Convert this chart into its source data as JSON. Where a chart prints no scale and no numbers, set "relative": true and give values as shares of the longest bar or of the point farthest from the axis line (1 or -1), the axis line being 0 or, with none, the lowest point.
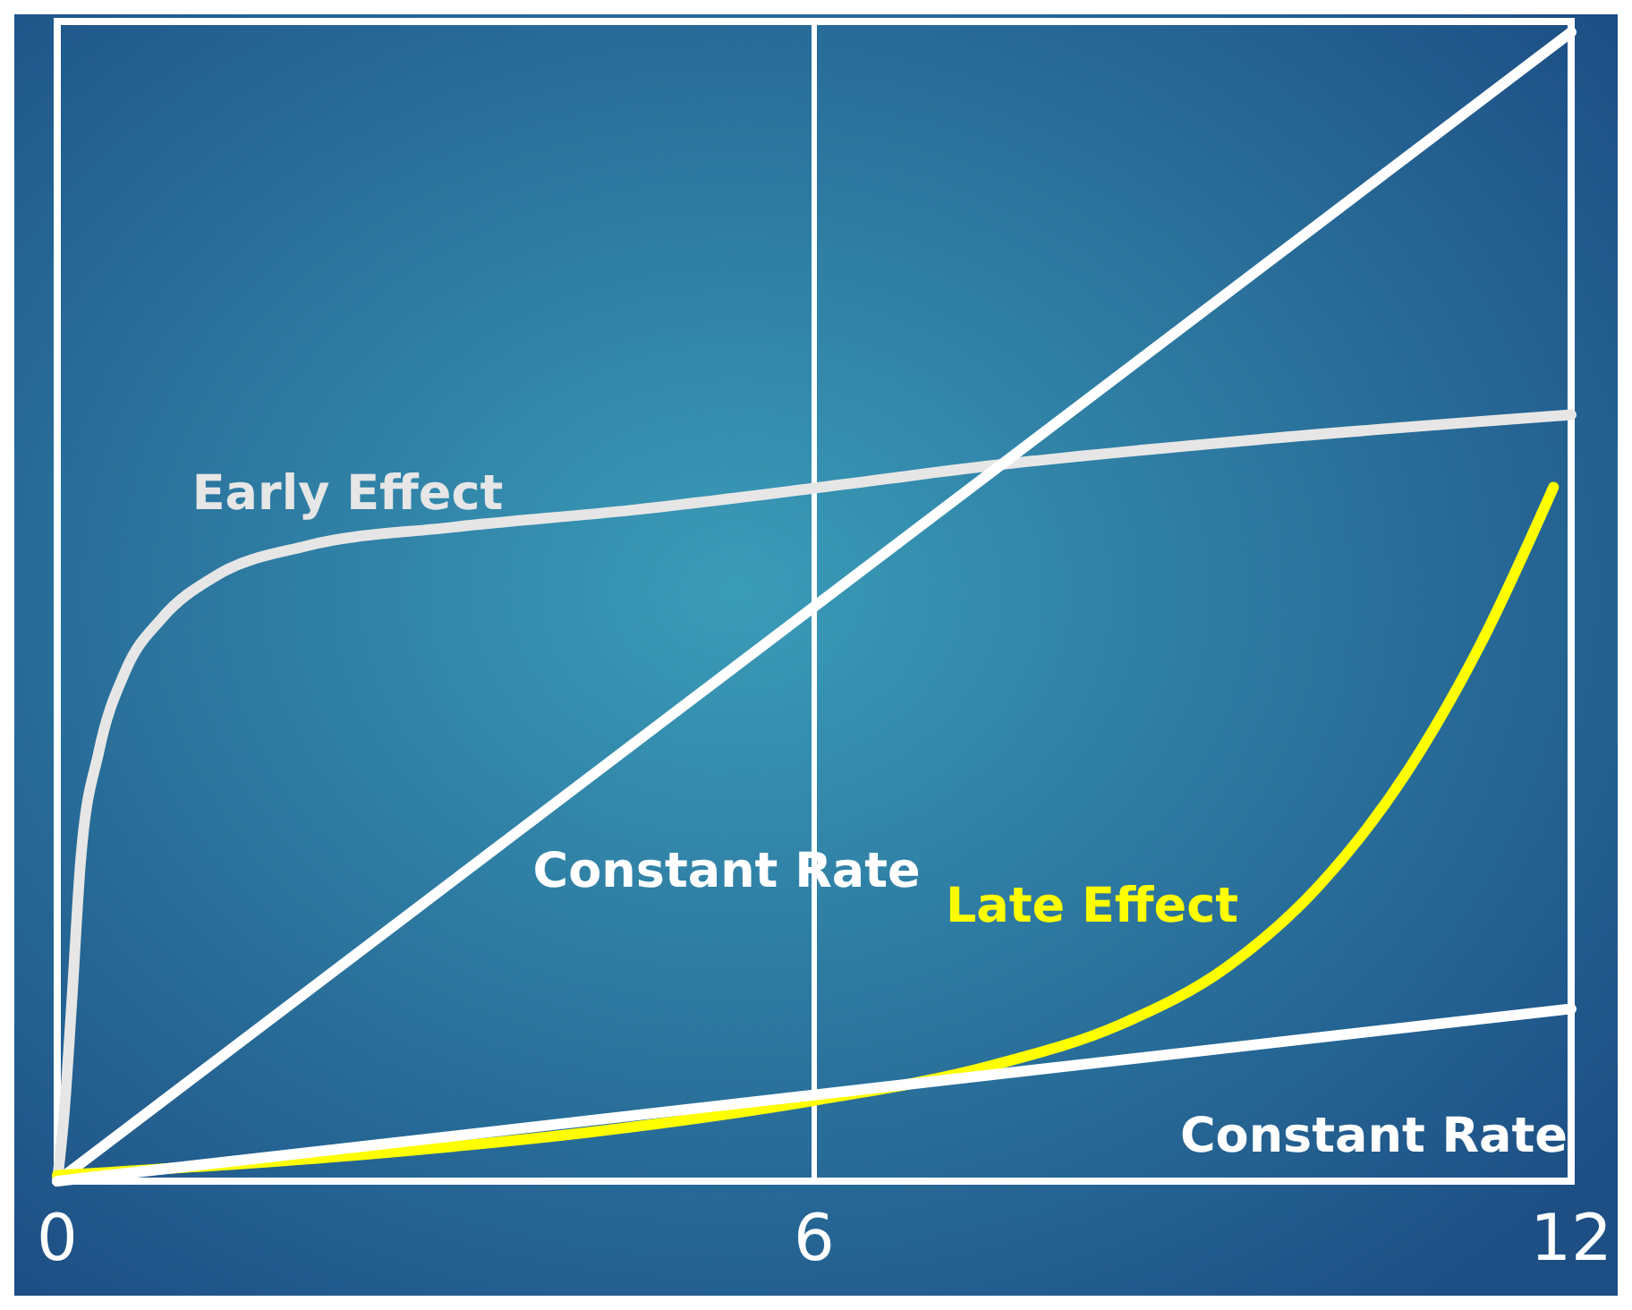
{
  "chart_data": {
    "type": "line",
    "relative": true,
    "xlim": [
      0,
      12
    ],
    "xticks": [
      0,
      6,
      12
    ],
    "line_style": "solid",
    "ref_lines": [
      {
        "axis": "x",
        "value": 6,
        "color": "#ffffff"
      }
    ],
    "series": [
      {
        "name": "Early Effect",
        "color": "#e6e6e6",
        "x": [
          0,
          0.057,
          0.115,
          0.186,
          0.33,
          0.54,
          0.83,
          1.26,
          1.98,
          3.12,
          4.55,
          5.99,
          7.42,
          9.57,
          12
        ],
        "values": [
          0,
          0.062,
          0.156,
          0.28,
          0.374,
          0.444,
          0.49,
          0.527,
          0.553,
          0.569,
          0.584,
          0.603,
          0.623,
          0.646,
          0.667
        ]
      },
      {
        "name": "Constant Rate",
        "color": "#ffffff",
        "x": [
          0,
          12
        ],
        "values": [
          0,
          1
        ]
      },
      {
        "name": "Late Effect",
        "color": "#ffff00",
        "x": [
          0,
          2.41,
          4.55,
          5.99,
          7.42,
          8.42,
          9.28,
          10,
          10.71,
          11.28,
          11.86
        ],
        "values": [
          0.005,
          0.023,
          0.047,
          0.07,
          0.101,
          0.136,
          0.187,
          0.257,
          0.358,
          0.467,
          0.604
        ]
      },
      {
        "name": "Constant Rate",
        "color": "#ffffff",
        "x": [
          0,
          12
        ],
        "values": [
          0,
          0.15
        ]
      }
    ]
  }
}
